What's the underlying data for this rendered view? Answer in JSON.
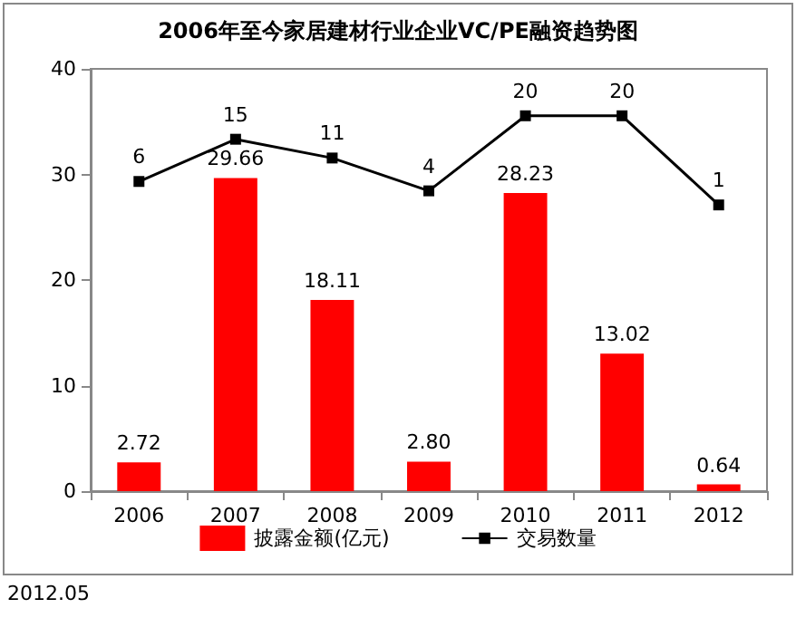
{
  "chart_data": {
    "type": "bar",
    "title": "2006年至今家居建材行业企业VC/PE融资趋势图",
    "categories": [
      "2006",
      "2007",
      "2008",
      "2009",
      "2010",
      "2011",
      "2012"
    ],
    "series": [
      {
        "name": "披露金额(亿元)",
        "color": "#ff0000",
        "values": [
          2.72,
          29.66,
          18.11,
          2.8,
          28.23,
          13.02,
          0.64
        ],
        "value_labels": [
          "2.72",
          "29.66",
          "18.11",
          "2.80",
          "28.23",
          "13.02",
          "0.64"
        ]
      },
      {
        "name": "交易数量",
        "type": "line",
        "axis": "y2",
        "color": "#000000",
        "marker": "square",
        "values": [
          6,
          15,
          11,
          4,
          20,
          20,
          1
        ]
      }
    ],
    "ylim": [
      0,
      40
    ],
    "yticks": [
      0,
      10,
      20,
      30,
      40
    ],
    "y2lim": [
      -60,
      30
    ],
    "data_labels": true,
    "grid": false,
    "legend": "bottom",
    "annotations": [
      "2012.05"
    ]
  }
}
